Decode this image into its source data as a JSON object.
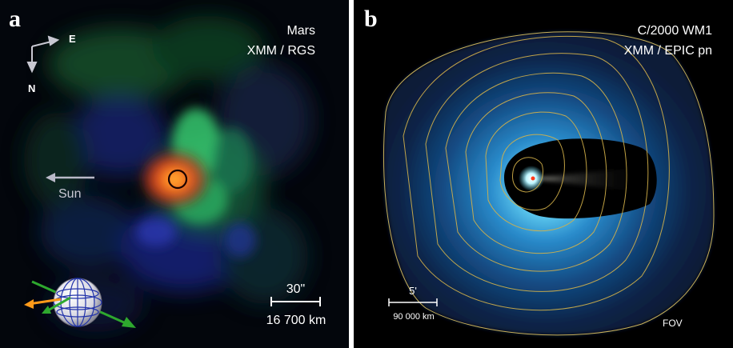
{
  "panel_a": {
    "letter": "a",
    "target": "Mars",
    "instrument": "XMM / RGS",
    "compass_east": "E",
    "compass_north": "N",
    "sun_label": "Sun",
    "scale_angle": "30\"",
    "scale_distance": "16 700 km"
  },
  "panel_b": {
    "letter": "b",
    "target": "C/2000 WM1",
    "instrument": "XMM / EPIC pn",
    "scale_angle": "5'",
    "scale_distance": "90 000 km",
    "fov_label": "FOV"
  },
  "colors": {
    "mars_core": "#ff5a1e",
    "mars_halo": "#2fd070",
    "mars_blue": "#2a3aa8",
    "comet_glow": "#2fa6e6",
    "contour": "#d4b24a",
    "arrow_gray": "#b9b9c8",
    "axis_green": "#2ea82e",
    "axis_orange": "#ff9a1a"
  }
}
